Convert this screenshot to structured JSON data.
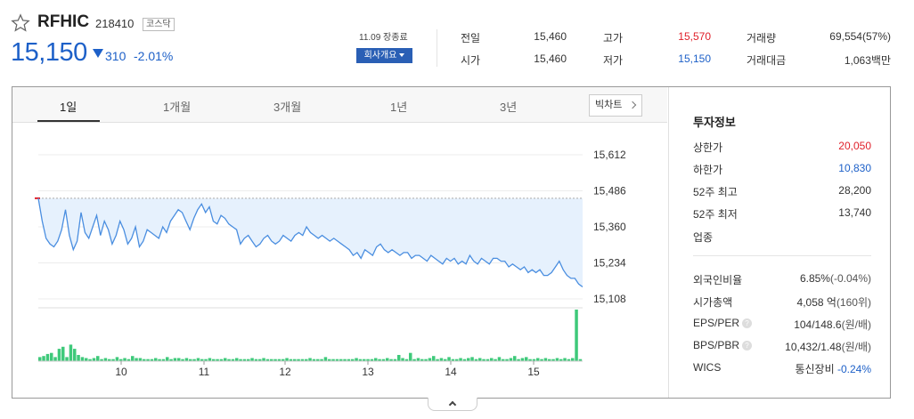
{
  "stock": {
    "name": "RFHIC",
    "code": "218410",
    "market": "코스닥",
    "price": "15,150",
    "change": "310",
    "change_pct": "-2.01%"
  },
  "session": {
    "date_label": "11.09 장종료",
    "overview_button": "회사개요"
  },
  "quote": {
    "prev_close_label": "전일",
    "prev_close": "15,460",
    "high_label": "고가",
    "high": "15,570",
    "volume_label": "거래량",
    "volume": "69,554(57%)",
    "open_label": "시가",
    "open": "15,460",
    "low_label": "저가",
    "low": "15,150",
    "amount_label": "거래대금",
    "amount": "1,063백만"
  },
  "tabs": [
    "1일",
    "1개월",
    "3개월",
    "1년",
    "3년"
  ],
  "bigchart_label": "빅차트",
  "info": {
    "title": "투자정보",
    "upper_limit_label": "상한가",
    "upper_limit": "20,050",
    "lower_limit_label": "하한가",
    "lower_limit": "10,830",
    "high52_label": "52주 최고",
    "high52": "28,200",
    "low52_label": "52주 최저",
    "low52": "13,740",
    "industry_label": "업종",
    "foreign_label": "외국인비율",
    "foreign": "6.85%",
    "foreign_chg": "(-0.04%)",
    "mktcap_label": "시가총액",
    "mktcap": "4,058 억",
    "mktcap_rank": "(160위)",
    "eps_label": "EPS/PER",
    "eps": "104/148.6",
    "eps_unit": "(원/배)",
    "bps_label": "BPS/PBR",
    "bps": "10,432/1.48",
    "bps_unit": "(원/배)",
    "wics_label": "WICS",
    "wics": "통신장비",
    "wics_chg": "-0.24%",
    "qmark": "?"
  },
  "colors": {
    "up": "#e0202a",
    "down": "#1d60c8",
    "line": "#4a8ee0",
    "fill": "#e6f1fd",
    "volume": "#3ec97a"
  },
  "chart_data": {
    "type": "line",
    "x_ticks": [
      "10",
      "11",
      "12",
      "13",
      "14",
      "15"
    ],
    "y_ticks": [
      "15,612",
      "15,486",
      "15,360",
      "15,234",
      "15,108"
    ],
    "ylim": [
      15108,
      15612
    ],
    "reference": 15460,
    "price": [
      15460,
      15380,
      15320,
      15300,
      15290,
      15310,
      15350,
      15420,
      15330,
      15280,
      15310,
      15410,
      15340,
      15320,
      15360,
      15400,
      15330,
      15380,
      15350,
      15300,
      15330,
      15380,
      15350,
      15300,
      15320,
      15360,
      15290,
      15310,
      15350,
      15340,
      15330,
      15320,
      15360,
      15340,
      15380,
      15400,
      15420,
      15410,
      15380,
      15350,
      15390,
      15420,
      15440,
      15410,
      15430,
      15380,
      15370,
      15400,
      15390,
      15370,
      15360,
      15350,
      15300,
      15320,
      15330,
      15310,
      15290,
      15300,
      15320,
      15330,
      15310,
      15300,
      15310,
      15330,
      15320,
      15310,
      15330,
      15340,
      15330,
      15360,
      15340,
      15330,
      15320,
      15330,
      15320,
      15310,
      15320,
      15310,
      15300,
      15290,
      15280,
      15260,
      15270,
      15250,
      15280,
      15270,
      15260,
      15290,
      15300,
      15280,
      15270,
      15280,
      15270,
      15260,
      15270,
      15270,
      15250,
      15260,
      15260,
      15250,
      15240,
      15260,
      15250,
      15240,
      15230,
      15250,
      15240,
      15250,
      15230,
      15240,
      15230,
      15260,
      15240,
      15230,
      15250,
      15240,
      15230,
      15250,
      15250,
      15240,
      15240,
      15220,
      15230,
      15220,
      15210,
      15220,
      15200,
      15210,
      15200,
      15210,
      15190,
      15190,
      15200,
      15220,
      15240,
      15210,
      15190,
      15180,
      15180,
      15160,
      15150
    ],
    "volume": [
      4,
      5,
      7,
      8,
      4,
      12,
      14,
      4,
      16,
      12,
      6,
      4,
      3,
      2,
      3,
      5,
      2,
      3,
      2,
      2,
      4,
      2,
      3,
      2,
      5,
      3,
      3,
      2,
      2,
      2,
      3,
      2,
      2,
      4,
      2,
      3,
      3,
      2,
      3,
      2,
      2,
      3,
      2,
      2,
      3,
      2,
      2,
      2,
      3,
      2,
      2,
      3,
      2,
      2,
      2,
      3,
      2,
      2,
      3,
      2,
      2,
      2,
      2,
      2,
      3,
      2,
      2,
      2,
      2,
      2,
      3,
      2,
      2,
      2,
      4,
      2,
      2,
      2,
      2,
      2,
      2,
      2,
      3,
      2,
      2,
      2,
      2,
      3,
      2,
      2,
      3,
      2,
      2,
      6,
      3,
      2,
      8,
      2,
      3,
      2,
      2,
      3,
      5,
      2,
      3,
      2,
      4,
      2,
      2,
      3,
      2,
      3,
      4,
      2,
      3,
      2,
      2,
      3,
      2,
      4,
      2,
      2,
      3,
      5,
      2,
      3,
      4,
      2,
      2,
      3,
      2,
      3,
      2,
      2,
      3,
      2,
      3,
      2,
      3,
      50,
      2
    ]
  }
}
